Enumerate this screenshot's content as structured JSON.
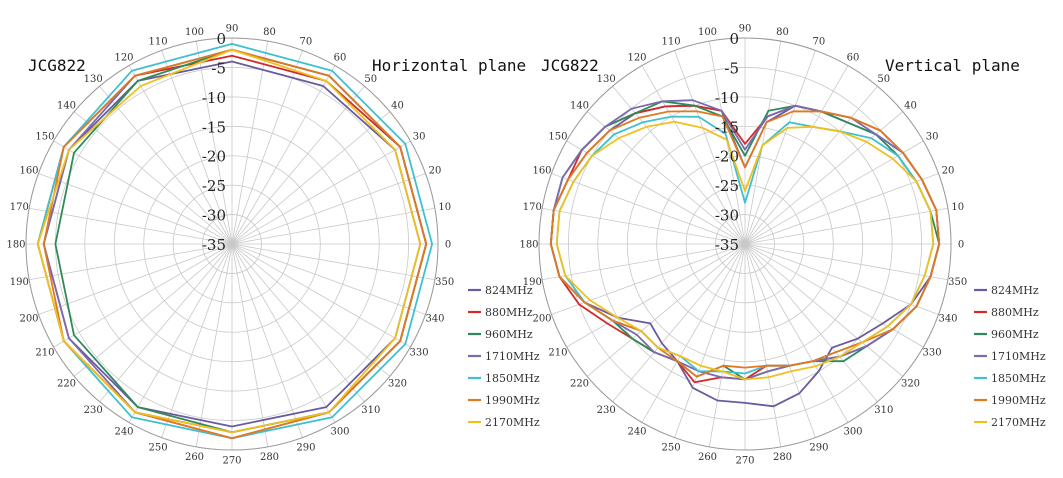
{
  "chart_data": [
    {
      "type": "polar-line",
      "title": "Horizontal plane",
      "subtitle": "JCG822",
      "angular_unit": "deg",
      "angle_ticks": [
        0,
        10,
        20,
        30,
        40,
        50,
        60,
        70,
        80,
        90,
        100,
        110,
        120,
        130,
        140,
        150,
        160,
        170,
        180,
        190,
        200,
        210,
        220,
        230,
        240,
        250,
        260,
        270,
        280,
        290,
        300,
        310,
        320,
        330,
        340,
        350
      ],
      "radial_ticks": [
        0,
        -5,
        -10,
        -15,
        -20,
        -25,
        -30,
        -35
      ],
      "rlim": [
        -35,
        0
      ],
      "grid": true,
      "legend_position": "bottom-right",
      "angles": [
        0,
        30,
        60,
        90,
        120,
        150,
        180,
        210,
        240,
        270,
        300,
        330
      ],
      "series": [
        {
          "name": "824MHz",
          "color": "#6a5a9e",
          "values": [
            -3,
            -3,
            -4,
            -4,
            -3,
            -3,
            -3,
            -3,
            -3,
            -4,
            -3,
            -3
          ]
        },
        {
          "name": "880MHz",
          "color": "#d22a2a",
          "values": [
            -2,
            -2,
            -3,
            -3,
            -2,
            -2,
            -2,
            -2,
            -2,
            -3,
            -2,
            -2
          ]
        },
        {
          "name": "960MHz",
          "color": "#2e8a5a",
          "values": [
            -2,
            -2,
            -2,
            -2,
            -3,
            -4,
            -5,
            -4,
            -3,
            -3,
            -2,
            -2
          ]
        },
        {
          "name": "1710MHz",
          "color": "#7a6ab0",
          "values": [
            -2,
            -2,
            -2,
            -2,
            -2,
            -3,
            -3,
            -3,
            -2,
            -2,
            -2,
            -2
          ]
        },
        {
          "name": "1850MHz",
          "color": "#3fc0d0",
          "values": [
            -1,
            -1,
            -1,
            -1,
            -1,
            -2,
            -2,
            -2,
            -1,
            -2,
            -1,
            -1
          ]
        },
        {
          "name": "1990MHz",
          "color": "#e07a20",
          "values": [
            -2,
            -2,
            -2,
            -2,
            -2,
            -2,
            -3,
            -2,
            -2,
            -2,
            -2,
            -2
          ]
        },
        {
          "name": "2170MHz",
          "color": "#f0c020",
          "values": [
            -3,
            -3,
            -3,
            -2,
            -4,
            -3,
            -2,
            -2,
            -2,
            -3,
            -2,
            -3
          ]
        }
      ]
    },
    {
      "type": "polar-line",
      "title": "Vertical plane",
      "subtitle": "JCG822",
      "angular_unit": "deg",
      "angle_ticks": [
        0,
        10,
        20,
        30,
        40,
        50,
        60,
        70,
        80,
        90,
        100,
        110,
        120,
        130,
        140,
        150,
        160,
        170,
        180,
        190,
        200,
        210,
        220,
        230,
        240,
        250,
        260,
        270,
        280,
        290,
        300,
        310,
        320,
        330,
        340,
        350
      ],
      "radial_ticks": [
        0,
        -5,
        -10,
        -15,
        -20,
        -25,
        -30,
        -35
      ],
      "rlim": [
        -35,
        0
      ],
      "grid": true,
      "legend_position": "bottom-right",
      "angles": [
        0,
        10,
        20,
        30,
        40,
        50,
        60,
        70,
        80,
        90,
        100,
        110,
        120,
        130,
        140,
        150,
        160,
        170,
        180,
        190,
        200,
        210,
        220,
        230,
        240,
        250,
        260,
        270,
        280,
        290,
        300,
        310,
        320,
        330,
        340,
        350
      ],
      "series": [
        {
          "name": "824MHz",
          "color": "#6a5a9e",
          "values": [
            -2,
            -2,
            -3,
            -4,
            -6,
            -8,
            -9,
            -10,
            -14,
            -22,
            -12,
            -10,
            -8,
            -6,
            -5,
            -4,
            -3,
            -2,
            -2,
            -3,
            -6,
            -10,
            -14,
            -13,
            -12,
            -9,
            -8,
            -8,
            -7,
            -8,
            -10,
            -12,
            -10,
            -8,
            -5,
            -3
          ]
        },
        {
          "name": "880MHz",
          "color": "#d22a2a",
          "values": [
            -2,
            -2,
            -3,
            -4,
            -5,
            -7,
            -9,
            -10,
            -13,
            -18,
            -12,
            -10,
            -8,
            -6,
            -4,
            -3,
            -3,
            -2,
            -2,
            -3,
            -5,
            -8,
            -10,
            -11,
            -12,
            -10,
            -12,
            -12,
            -14,
            -13,
            -12,
            -10,
            -8,
            -6,
            -4,
            -3
          ]
        },
        {
          "name": "960MHz",
          "color": "#2e8a5a",
          "values": [
            -2,
            -3,
            -4,
            -5,
            -6,
            -8,
            -9,
            -10,
            -12,
            -20,
            -13,
            -10,
            -7,
            -6,
            -4,
            -3,
            -2,
            -2,
            -2,
            -3,
            -6,
            -9,
            -10,
            -11,
            -12,
            -11,
            -14,
            -12,
            -13,
            -13,
            -12,
            -9,
            -8,
            -6,
            -4,
            -3
          ]
        },
        {
          "name": "1710MHz",
          "color": "#7a6ab0",
          "values": [
            -2,
            -2,
            -3,
            -4,
            -6,
            -7,
            -9,
            -10,
            -13,
            -19,
            -12,
            -9,
            -7,
            -5,
            -4,
            -3,
            -2,
            -2,
            -2,
            -3,
            -6,
            -9,
            -11,
            -11,
            -12,
            -12,
            -12,
            -12,
            -13,
            -13,
            -12,
            -10,
            -8,
            -6,
            -4,
            -3
          ]
        },
        {
          "name": "1850MHz",
          "color": "#3fc0d0",
          "values": [
            -3,
            -3,
            -4,
            -5,
            -7,
            -10,
            -12,
            -13,
            -18,
            -28,
            -16,
            -12,
            -10,
            -8,
            -6,
            -5,
            -4,
            -3,
            -3,
            -4,
            -6,
            -9,
            -12,
            -12,
            -13,
            -12,
            -13,
            -13,
            -14,
            -13,
            -12,
            -11,
            -9,
            -7,
            -5,
            -4
          ]
        },
        {
          "name": "1990MHz",
          "color": "#e07a20",
          "values": [
            -2,
            -2,
            -3,
            -4,
            -5,
            -7,
            -9,
            -11,
            -14,
            -22,
            -13,
            -11,
            -9,
            -7,
            -5,
            -4,
            -3,
            -2,
            -2,
            -3,
            -6,
            -9,
            -12,
            -12,
            -12,
            -11,
            -14,
            -14,
            -14,
            -13,
            -12,
            -11,
            -9,
            -6,
            -4,
            -3
          ]
        },
        {
          "name": "2170MHz",
          "color": "#f0c020",
          "values": [
            -3,
            -3,
            -4,
            -6,
            -8,
            -10,
            -12,
            -14,
            -18,
            -26,
            -17,
            -14,
            -11,
            -9,
            -7,
            -5,
            -4,
            -3,
            -3,
            -4,
            -7,
            -10,
            -12,
            -12,
            -13,
            -13,
            -13,
            -12,
            -12,
            -12,
            -11,
            -10,
            -9,
            -7,
            -5,
            -4
          ]
        }
      ]
    }
  ]
}
